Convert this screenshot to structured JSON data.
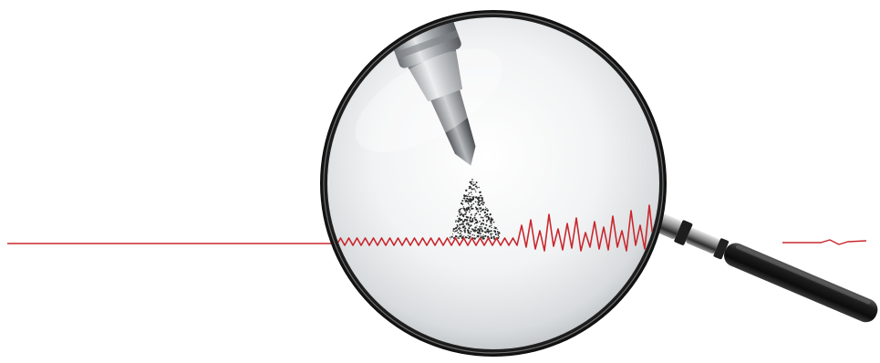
{
  "scene": {
    "subject": "magnifying-glass-over-signal-trace",
    "colors": {
      "background": "#ffffff",
      "signal": "#c8282e",
      "lens_rim": "#1a1a1a",
      "lens_glass_center": "#ffffff",
      "lens_glass_edge": "#bfc3c6",
      "nozzle_metal": "#9a9ea3",
      "handle": "#151515",
      "spray_particles": "#2a2a2a"
    }
  }
}
